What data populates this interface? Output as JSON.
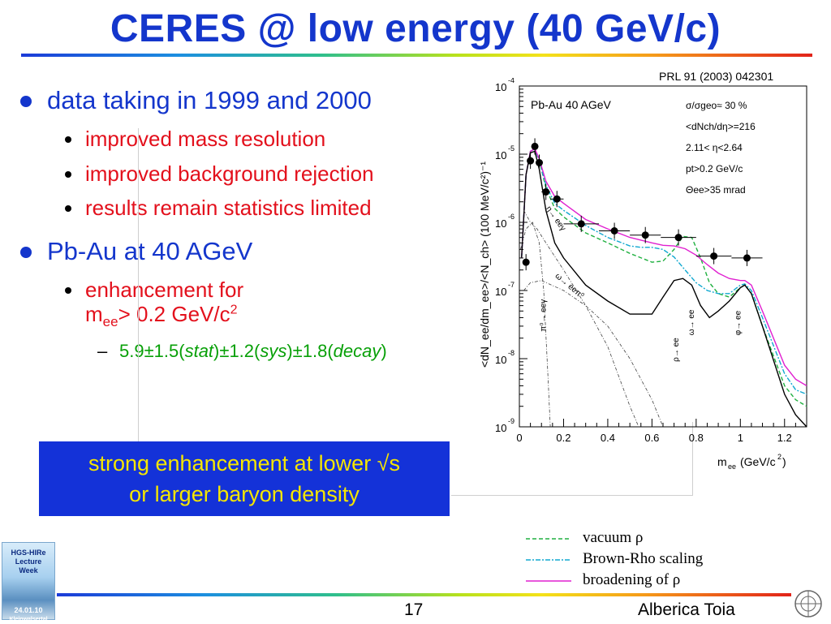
{
  "slide": {
    "title": "CERES @ low energy (40 GeV/c)",
    "reference": "PRL 91 (2003) 042301",
    "bullets": [
      {
        "text": "data taking in 1999 and 2000",
        "sub": [
          "improved mass resolution",
          "improved background rejection",
          "results remain statistics limited"
        ]
      },
      {
        "text": "Pb-Au at 40 AGeV",
        "sub_line1": "enhancement for",
        "sub_line2_pre": "m",
        "sub_line2_sub": "ee",
        "sub_line2_post": "> 0.2 GeV/c",
        "sub_line2_sup": "2",
        "subsub": {
          "a": "5.9±1.5(",
          "stat": "stat",
          "b": ")±1.2(",
          "sys": "sys",
          "c": ")±1.8(",
          "decay": "decay",
          "d": ")"
        }
      }
    ],
    "callout_line1": "strong enhancement at lower √s",
    "callout_line2": "or larger baryon density",
    "page_number": "17",
    "author": "Alberica Toia",
    "logo_text": [
      "HGS-HIRe",
      "Lecture",
      "Week",
      "24.01.10",
      "Kleinwalsertal"
    ],
    "colors": {
      "title": "#1436cc",
      "sub_bullet": "#e3101c",
      "subsub": "#08a008",
      "callout_bg": "#1432d8",
      "callout_text": "#f5e600"
    }
  },
  "legend": [
    {
      "label": "vacuum ρ",
      "color": "#20b040",
      "style": "dashed"
    },
    {
      "label": "Brown-Rho scaling",
      "color": "#10a8d0",
      "style": "dashdot"
    },
    {
      "label": "broadening of ρ",
      "color": "#e020d0",
      "style": "solid"
    }
  ],
  "chart_data": {
    "type": "scatter",
    "log_y": true,
    "xlim": [
      0,
      1.3
    ],
    "ylim": [
      1e-09,
      0.0001
    ],
    "xticks": [
      "0",
      "0.2",
      "0.4",
      "0.6",
      "0.8",
      "1",
      "1.2"
    ],
    "yticks": [
      {
        "base": "10",
        "exp": "-4"
      },
      {
        "base": "10",
        "exp": "-5"
      },
      {
        "base": "10",
        "exp": "-6"
      },
      {
        "base": "10",
        "exp": "-7"
      },
      {
        "base": "10",
        "exp": "-8"
      },
      {
        "base": "10",
        "exp": "-9"
      }
    ],
    "xlabel": {
      "pre": "m",
      "sub": "ee",
      "post": " (GeV/c",
      "sup": "2",
      "end": ")"
    },
    "ylabel": "<dN_ee/dm_ee>/<N_ch> (100 MeV/c²)⁻¹",
    "panel_label": "Pb-Au 40 AGeV",
    "info": [
      "σ/σgeo≈ 30 %",
      "<dNch/dη>=216",
      "2.11< η<2.64",
      "pt>0.2 GeV/c",
      "Θee>35 mrad"
    ],
    "annotations": [
      "η→ eeγ",
      "ω→ eeπ⁰",
      "π⁰→ eeγ",
      "ρ→ ee",
      "ω→ ee",
      "φ→ ee"
    ],
    "data_points": {
      "x": [
        0.03,
        0.05,
        0.07,
        0.09,
        0.12,
        0.17,
        0.28,
        0.43,
        0.57,
        0.72,
        0.88,
        1.03
      ],
      "y": [
        2.6e-07,
        8e-06,
        1.3e-05,
        7.5e-06,
        2.8e-06,
        2.2e-06,
        9.5e-07,
        7.5e-07,
        6.5e-07,
        6e-07,
        3.2e-07,
        3e-07
      ],
      "x_err": [
        0.01,
        0.01,
        0.01,
        0.01,
        0.02,
        0.03,
        0.08,
        0.07,
        0.07,
        0.08,
        0.08,
        0.07
      ]
    },
    "series": [
      {
        "name": "vacuum ρ",
        "color": "#20b040",
        "dash": "5,3",
        "x": [
          0.01,
          0.03,
          0.05,
          0.07,
          0.09,
          0.12,
          0.16,
          0.2,
          0.3,
          0.4,
          0.5,
          0.6,
          0.65,
          0.7,
          0.74,
          0.78,
          0.82,
          0.86,
          0.9,
          0.95,
          1.0,
          1.02,
          1.05,
          1.1,
          1.2,
          1.25,
          1.3
        ],
        "y": [
          3e-07,
          5e-06,
          1.1e-05,
          1.2e-05,
          8e-06,
          3.2e-06,
          1.6e-06,
          1.2e-06,
          7e-07,
          5e-07,
          3.5e-07,
          2.6e-07,
          2.7e-07,
          4e-07,
          6.2e-07,
          6e-07,
          3e-07,
          1.3e-07,
          9e-08,
          8e-08,
          1.1e-07,
          1.2e-07,
          9e-08,
          3e-08,
          4e-09,
          2.5e-09,
          2e-09
        ]
      },
      {
        "name": "Brown-Rho scaling",
        "color": "#10a8d0",
        "dash": "6,2,2,2",
        "x": [
          0.01,
          0.03,
          0.05,
          0.07,
          0.09,
          0.12,
          0.16,
          0.2,
          0.3,
          0.4,
          0.5,
          0.55,
          0.6,
          0.65,
          0.7,
          0.75,
          0.8,
          0.85,
          0.9,
          0.95,
          1.0,
          1.02,
          1.05,
          1.1,
          1.2,
          1.25,
          1.3
        ],
        "y": [
          3e-07,
          5e-06,
          1.1e-05,
          1.2e-05,
          8e-06,
          3.5e-06,
          1.9e-06,
          1.5e-06,
          9e-07,
          6e-07,
          4.5e-07,
          4.3e-07,
          4.3e-07,
          4e-07,
          3.1e-07,
          2e-07,
          1.3e-07,
          1e-07,
          9e-08,
          9e-08,
          1.2e-07,
          1.25e-07,
          1e-07,
          4e-08,
          6e-09,
          3.5e-09,
          3e-09
        ]
      },
      {
        "name": "broadening of ρ",
        "color": "#e020d0",
        "dash": "",
        "x": [
          0.01,
          0.03,
          0.05,
          0.07,
          0.09,
          0.12,
          0.16,
          0.2,
          0.3,
          0.4,
          0.5,
          0.6,
          0.65,
          0.7,
          0.75,
          0.8,
          0.85,
          0.9,
          0.95,
          1.0,
          1.02,
          1.05,
          1.1,
          1.2,
          1.25,
          1.3
        ],
        "y": [
          3e-07,
          5e-06,
          1.1e-05,
          1.2e-05,
          8.5e-06,
          4e-06,
          2.4e-06,
          1.9e-06,
          1.1e-06,
          8e-07,
          6e-07,
          5e-07,
          4.6e-07,
          4.5e-07,
          4.1e-07,
          3.3e-07,
          2.4e-07,
          1.8e-07,
          1.5e-07,
          1.4e-07,
          1.4e-07,
          1.2e-07,
          5e-08,
          8e-09,
          5e-09,
          4e-09
        ]
      },
      {
        "name": "cocktail sum",
        "color": "#000000",
        "dash": "",
        "x": [
          0.01,
          0.03,
          0.05,
          0.07,
          0.09,
          0.12,
          0.16,
          0.2,
          0.3,
          0.4,
          0.5,
          0.6,
          0.65,
          0.7,
          0.74,
          0.78,
          0.82,
          0.86,
          0.9,
          0.95,
          1.0,
          1.02,
          1.05,
          1.1,
          1.2,
          1.25,
          1.3
        ],
        "y": [
          3e-07,
          5e-06,
          1.05e-05,
          1.1e-05,
          6e-06,
          1.5e-06,
          5e-07,
          3e-07,
          1.2e-07,
          7e-08,
          4.5e-08,
          4.5e-08,
          8e-08,
          1.4e-07,
          1.5e-07,
          1.2e-07,
          6e-08,
          4e-08,
          5e-08,
          7e-08,
          1.1e-07,
          1.2e-07,
          9e-08,
          3e-08,
          3e-09,
          1.5e-09,
          1e-09
        ]
      },
      {
        "name": "eta dalitz",
        "color": "#404040",
        "dash": "4,2,1,2",
        "x": [
          0.02,
          0.05,
          0.08,
          0.12,
          0.2,
          0.3,
          0.4,
          0.5,
          0.54
        ],
        "y": [
          1.5e-06,
          1e-06,
          8e-07,
          5e-07,
          2e-07,
          6e-08,
          1.5e-08,
          2e-09,
          1e-09
        ]
      },
      {
        "name": "omega dalitz",
        "color": "#404040",
        "dash": "4,2,1,2",
        "x": [
          0.02,
          0.05,
          0.1,
          0.2,
          0.3,
          0.4,
          0.5,
          0.6,
          0.65
        ],
        "y": [
          1e-07,
          1.3e-07,
          1.4e-07,
          1e-07,
          6e-08,
          3e-08,
          1e-08,
          2.5e-09,
          1e-09
        ]
      },
      {
        "name": "pi0 dalitz",
        "color": "#404040",
        "dash": "4,2,1,2",
        "x": [
          0.005,
          0.03,
          0.06,
          0.09,
          0.11,
          0.13,
          0.14
        ],
        "y": [
          4e-07,
          8e-07,
          1e-06,
          5e-07,
          1e-07,
          5e-09,
          1e-09
        ]
      }
    ]
  }
}
